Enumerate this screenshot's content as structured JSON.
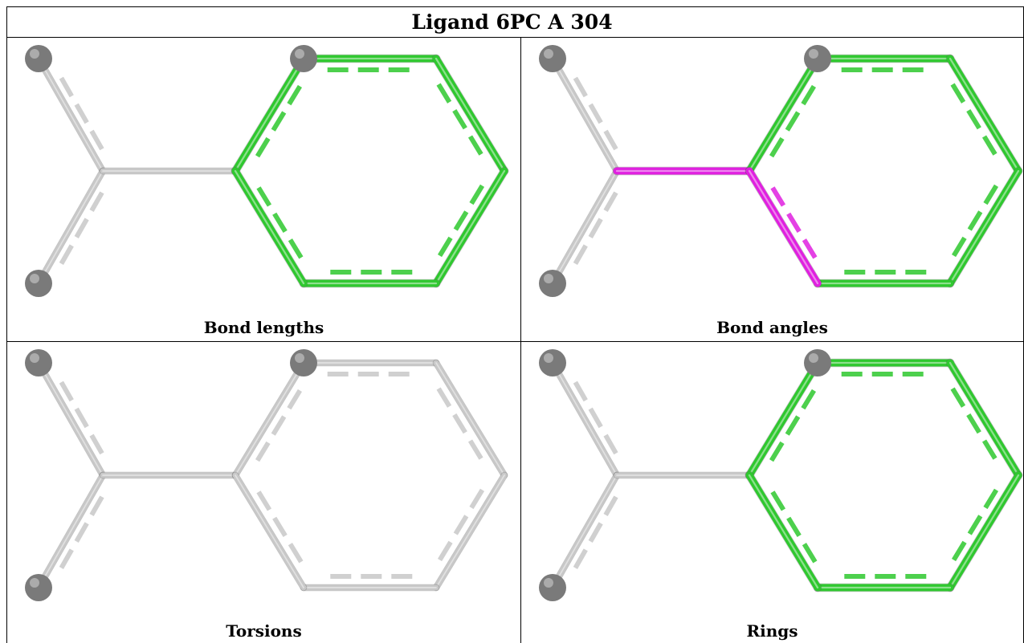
{
  "title": "Ligand 6PC A 304",
  "panels": [
    {
      "caption": "Bond lengths",
      "ring_color": "#2fc82f",
      "highlight_bonds": [],
      "highlight_color": "#e020e0",
      "ring_highlight": true
    },
    {
      "caption": "Bond angles",
      "ring_color": "#2fc82f",
      "highlight_bonds": [
        "C1-C2",
        "C2-C3"
      ],
      "highlight_color": "#e020e0",
      "ring_highlight": true
    },
    {
      "caption": "Torsions",
      "ring_color": "#c8c8c8",
      "highlight_bonds": [],
      "highlight_color": "#e020e0",
      "ring_highlight": false
    },
    {
      "caption": "Rings",
      "ring_color": "#2fc82f",
      "highlight_bonds": [],
      "highlight_color": "#e020e0",
      "ring_highlight": true
    }
  ],
  "colors": {
    "bond_default": "#c8c8c8",
    "atom": "#808080",
    "border": "#000000"
  }
}
